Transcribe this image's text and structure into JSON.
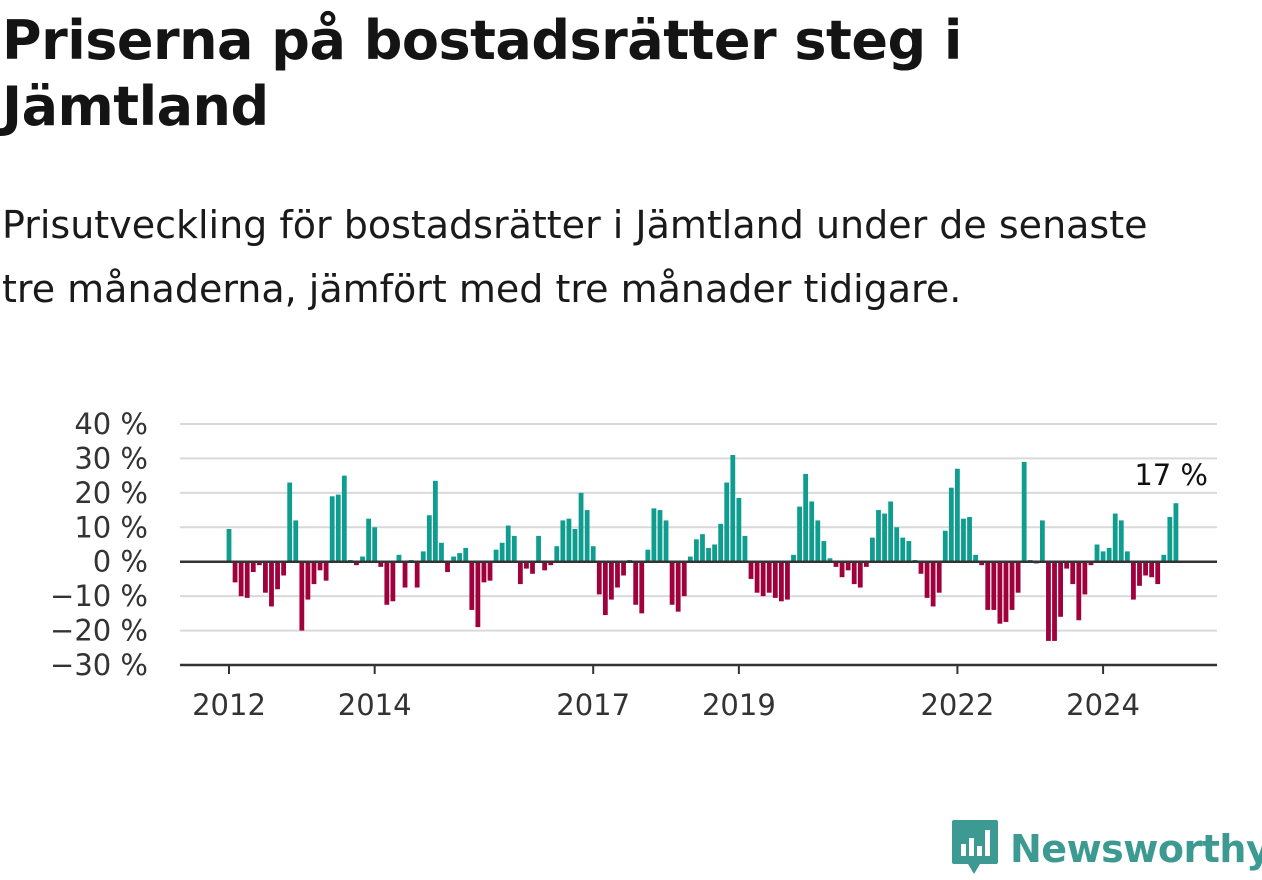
{
  "title": "Priserna på bostadsrätter steg i Jämtland",
  "subtitle": "Prisutveckling för bostadsrätter i Jämtland under de senaste tre månaderna, jämfört med tre månader tidigare.",
  "brand": {
    "name": "Newsworthy",
    "icon": "newsworthy-logo-icon",
    "color": "#3d9a92"
  },
  "colors": {
    "positive": "#0f9d8f",
    "negative": "#a0003c",
    "grid": "#d9d9d9",
    "axis": "#333333"
  },
  "chart_data": {
    "type": "bar",
    "title": "",
    "xlabel": "",
    "ylabel": "",
    "ylim": [
      -30,
      40
    ],
    "y_ticks": [
      40,
      30,
      20,
      10,
      0,
      -10,
      -20,
      -30
    ],
    "y_tick_labels": [
      "40 %",
      "30 %",
      "20 %",
      "10 %",
      "0 %",
      "−10 %",
      "−20 %",
      "−30 %"
    ],
    "x_ticks": [
      {
        "label": "2012",
        "index": 0
      },
      {
        "label": "2014",
        "index": 24
      },
      {
        "label": "2017",
        "index": 60
      },
      {
        "label": "2019",
        "index": 84
      },
      {
        "label": "2022",
        "index": 120
      },
      {
        "label": "2024",
        "index": 144
      }
    ],
    "grid": true,
    "legend": "none",
    "series": [
      {
        "values": [
          9.5,
          -6,
          -10,
          -10.5,
          -3,
          -1,
          -9,
          -13,
          -8,
          -4,
          23,
          12,
          -20,
          -11,
          -6.5,
          -2.5,
          -5.5,
          19,
          19.5,
          25,
          0.5,
          -1,
          1.5,
          12.5,
          10,
          -1.5,
          -12.5,
          -11.5,
          2,
          -7.5,
          0.5,
          -7.5,
          3,
          13.5,
          23.5,
          5.5,
          -3,
          1.5,
          2.5,
          4,
          -14,
          -19,
          -6,
          -5.5,
          3.5,
          5.5,
          10.5,
          7.5,
          -6.5,
          -2,
          -3.5,
          7.5,
          -2.5,
          -1,
          4.5,
          12,
          12.5,
          9.5,
          20,
          15,
          4.5,
          -9.5,
          -15.5,
          -11,
          -7.5,
          -4,
          0.5,
          -12.5,
          -15,
          3.5,
          15.5,
          15,
          12,
          -12.5,
          -14.5,
          -10,
          1.5,
          6.5,
          8,
          4,
          5,
          11,
          23,
          31,
          18.5,
          7.5,
          -5,
          -9,
          -10,
          -9,
          -10.5,
          -11.5,
          -11,
          2,
          16,
          25.5,
          17.5,
          12,
          6,
          1,
          -1.5,
          -4.5,
          -2.5,
          -6.5,
          -7.5,
          -1.5,
          7,
          15,
          14,
          17.5,
          10,
          7,
          6,
          0.5,
          -3.5,
          -10.5,
          -13,
          -9,
          9,
          21.5,
          27,
          12.5,
          13,
          2,
          -1,
          -14,
          -14,
          -18,
          -17.5,
          -14,
          -9,
          29,
          0.5,
          -0.5,
          12,
          -23,
          -23,
          -16,
          -2,
          -6.5,
          -17,
          -9.5,
          -1,
          5,
          3,
          4,
          14,
          12,
          3,
          -11,
          -7,
          -4,
          -4.5,
          -6.5,
          2,
          13,
          17
        ],
        "end_label": "17 %"
      }
    ]
  }
}
